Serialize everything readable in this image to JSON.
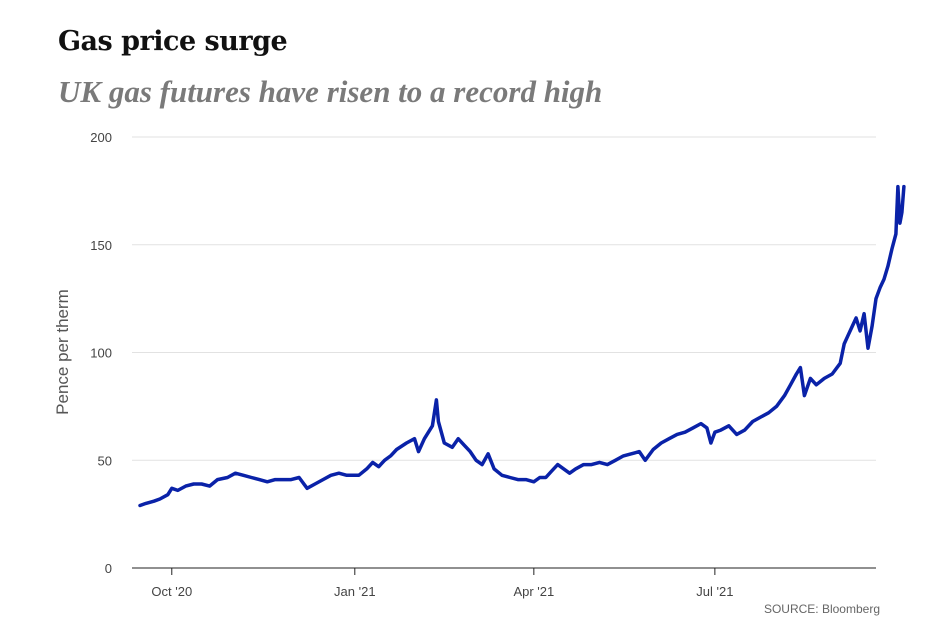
{
  "chart_data": {
    "type": "line",
    "title": "Gas price surge",
    "subtitle": "UK gas futures have risen to a record high",
    "ylabel": "Pence per therm",
    "xlabel": "",
    "ylim": [
      0,
      200
    ],
    "y_ticks": [
      0,
      50,
      100,
      150,
      200
    ],
    "x_ticks": [
      {
        "label": "Oct '20",
        "date": "2020-10-01"
      },
      {
        "label": "Jan '21",
        "date": "2021-01-01"
      },
      {
        "label": "Apr '21",
        "date": "2021-04-01"
      },
      {
        "label": "Jul '21",
        "date": "2021-07-01"
      }
    ],
    "xlim": [
      "2020-09-11",
      "2021-09-20"
    ],
    "grid": true,
    "source": "SOURCE: Bloomberg",
    "color": "#0a22a8",
    "series": [
      {
        "data": [
          [
            "2020-09-15",
            29
          ],
          [
            "2020-09-18",
            30
          ],
          [
            "2020-09-22",
            31
          ],
          [
            "2020-09-25",
            32
          ],
          [
            "2020-09-29",
            34
          ],
          [
            "2020-10-01",
            37
          ],
          [
            "2020-10-04",
            36
          ],
          [
            "2020-10-08",
            38
          ],
          [
            "2020-10-12",
            39
          ],
          [
            "2020-10-16",
            39
          ],
          [
            "2020-10-20",
            38
          ],
          [
            "2020-10-24",
            41
          ],
          [
            "2020-10-29",
            42
          ],
          [
            "2020-11-02",
            44
          ],
          [
            "2020-11-06",
            43
          ],
          [
            "2020-11-10",
            42
          ],
          [
            "2020-11-14",
            41
          ],
          [
            "2020-11-18",
            40
          ],
          [
            "2020-11-22",
            41
          ],
          [
            "2020-11-26",
            41
          ],
          [
            "2020-11-30",
            41
          ],
          [
            "2020-12-04",
            42
          ],
          [
            "2020-12-08",
            37
          ],
          [
            "2020-12-12",
            39
          ],
          [
            "2020-12-16",
            41
          ],
          [
            "2020-12-20",
            43
          ],
          [
            "2020-12-24",
            44
          ],
          [
            "2020-12-28",
            43
          ],
          [
            "2021-01-03",
            43
          ],
          [
            "2021-01-07",
            46
          ],
          [
            "2021-01-10",
            49
          ],
          [
            "2021-01-13",
            47
          ],
          [
            "2021-01-16",
            50
          ],
          [
            "2021-01-19",
            52
          ],
          [
            "2021-01-22",
            55
          ],
          [
            "2021-01-27",
            58
          ],
          [
            "2021-01-31",
            60
          ],
          [
            "2021-02-02",
            54
          ],
          [
            "2021-02-05",
            60
          ],
          [
            "2021-02-09",
            66
          ],
          [
            "2021-02-11",
            78
          ],
          [
            "2021-02-12",
            68
          ],
          [
            "2021-02-15",
            58
          ],
          [
            "2021-02-19",
            56
          ],
          [
            "2021-02-22",
            60
          ],
          [
            "2021-02-25",
            57
          ],
          [
            "2021-02-28",
            54
          ],
          [
            "2021-03-03",
            50
          ],
          [
            "2021-03-06",
            48
          ],
          [
            "2021-03-09",
            53
          ],
          [
            "2021-03-12",
            46
          ],
          [
            "2021-03-16",
            43
          ],
          [
            "2021-03-20",
            42
          ],
          [
            "2021-03-24",
            41
          ],
          [
            "2021-03-28",
            41
          ],
          [
            "2021-04-01",
            40
          ],
          [
            "2021-04-04",
            42
          ],
          [
            "2021-04-07",
            42
          ],
          [
            "2021-04-10",
            45
          ],
          [
            "2021-04-13",
            48
          ],
          [
            "2021-04-16",
            46
          ],
          [
            "2021-04-19",
            44
          ],
          [
            "2021-04-22",
            46
          ],
          [
            "2021-04-26",
            48
          ],
          [
            "2021-04-30",
            48
          ],
          [
            "2021-05-04",
            49
          ],
          [
            "2021-05-08",
            48
          ],
          [
            "2021-05-12",
            50
          ],
          [
            "2021-05-16",
            52
          ],
          [
            "2021-05-20",
            53
          ],
          [
            "2021-05-24",
            54
          ],
          [
            "2021-05-27",
            50
          ],
          [
            "2021-05-31",
            55
          ],
          [
            "2021-06-04",
            58
          ],
          [
            "2021-06-08",
            60
          ],
          [
            "2021-06-12",
            62
          ],
          [
            "2021-06-16",
            63
          ],
          [
            "2021-06-20",
            65
          ],
          [
            "2021-06-24",
            67
          ],
          [
            "2021-06-27",
            65
          ],
          [
            "2021-06-29",
            58
          ],
          [
            "2021-07-01",
            63
          ],
          [
            "2021-07-04",
            64
          ],
          [
            "2021-07-08",
            66
          ],
          [
            "2021-07-12",
            62
          ],
          [
            "2021-07-16",
            64
          ],
          [
            "2021-07-20",
            68
          ],
          [
            "2021-07-24",
            70
          ],
          [
            "2021-07-28",
            72
          ],
          [
            "2021-08-01",
            75
          ],
          [
            "2021-08-05",
            80
          ],
          [
            "2021-08-08",
            85
          ],
          [
            "2021-08-11",
            90
          ],
          [
            "2021-08-13",
            93
          ],
          [
            "2021-08-15",
            80
          ],
          [
            "2021-08-18",
            88
          ],
          [
            "2021-08-21",
            85
          ],
          [
            "2021-08-25",
            88
          ],
          [
            "2021-08-29",
            90
          ],
          [
            "2021-09-02",
            95
          ],
          [
            "2021-09-04",
            104
          ],
          [
            "2021-09-06",
            108
          ],
          [
            "2021-09-08",
            112
          ],
          [
            "2021-09-10",
            116
          ],
          [
            "2021-09-12",
            110
          ],
          [
            "2021-09-14",
            118
          ],
          [
            "2021-09-16",
            102
          ],
          [
            "2021-09-18",
            112
          ],
          [
            "2021-09-20",
            125
          ],
          [
            "2021-09-22",
            130
          ],
          [
            "2021-09-24",
            134
          ],
          [
            "2021-09-26",
            140
          ],
          [
            "2021-09-28",
            148
          ],
          [
            "2021-09-30",
            155
          ],
          [
            "2021-10-01",
            177
          ],
          [
            "2021-10-02",
            160
          ],
          [
            "2021-10-03",
            165
          ],
          [
            "2021-10-04",
            177
          ]
        ]
      }
    ]
  }
}
